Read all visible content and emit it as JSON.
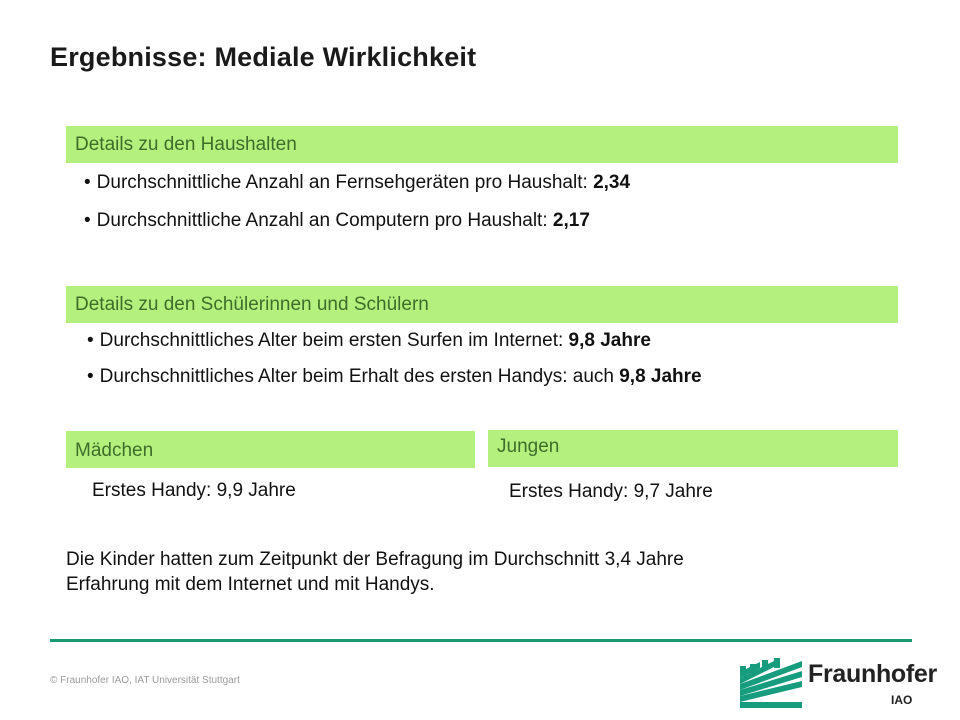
{
  "title": "Ergebnisse: Mediale Wirklichkeit",
  "haushalte": {
    "heading": "Details zu den Haushalten",
    "items": [
      {
        "text": "Durchschnittliche Anzahl an Fernsehgeräten pro Haushalt: ",
        "value": "2,34"
      },
      {
        "text": "Durchschnittliche Anzahl an Computern pro Haushalt: ",
        "value": "2,17"
      }
    ]
  },
  "schueler": {
    "heading": "Details zu den Schülerinnen und Schülern",
    "items": [
      {
        "text": "Durchschnittliches Alter beim ersten Surfen im Internet: ",
        "value": "9,8 Jahre"
      },
      {
        "text": "Durchschnittliches Alter beim Erhalt des ersten Handys: auch ",
        "value": "9,8 Jahre"
      }
    ]
  },
  "maedchen": {
    "heading": "Mädchen",
    "text": "Erstes Handy: 9,9 Jahre"
  },
  "jungen": {
    "heading": "Jungen",
    "text": "Erstes Handy: 9,7 Jahre"
  },
  "summary": {
    "line1": "Die Kinder hatten zum Zeitpunkt der Befragung im Durchschnitt 3,4 Jahre",
    "line2": "Erfahrung mit dem Internet und mit Handys."
  },
  "footer": {
    "copyright": "© Fraunhofer IAO, IAT Universität Stuttgart",
    "logo_name": "Fraunhofer",
    "logo_sub": "IAO"
  },
  "colors": {
    "header_bar": "#b3f07d",
    "header_text": "#3f6e2a",
    "rule": "#1a9a73",
    "logo_green": "#179c7d"
  }
}
